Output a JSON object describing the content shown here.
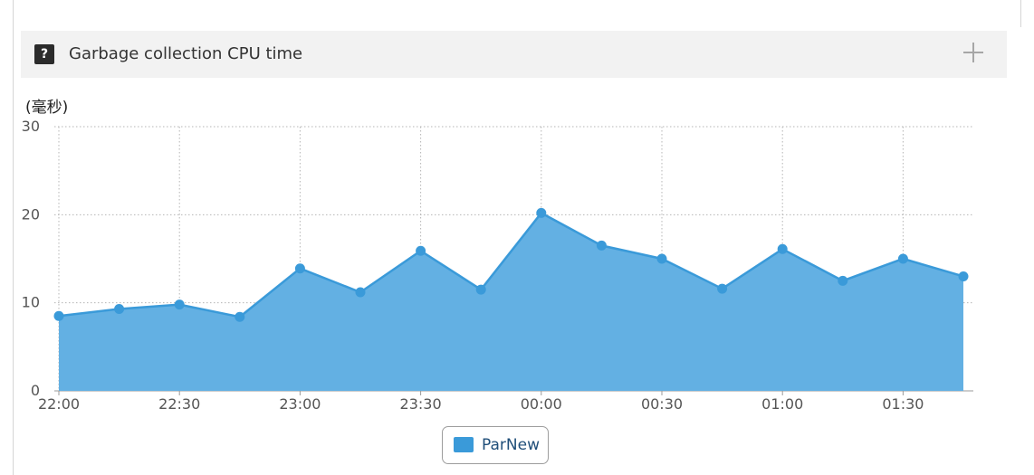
{
  "panel": {
    "title": "Garbage collection CPU time",
    "help_icon": "question-mark-icon",
    "help_glyph": "?",
    "expand_icon": "plus-icon"
  },
  "chart_data": {
    "type": "area",
    "unit_label": "(毫秒)",
    "x": [
      "22:00",
      "22:15",
      "22:30",
      "22:45",
      "23:00",
      "23:15",
      "23:30",
      "23:45",
      "00:00",
      "00:15",
      "00:30",
      "00:45",
      "01:00",
      "01:15",
      "01:30",
      "01:45"
    ],
    "x_tick_labels": [
      "22:00",
      "22:30",
      "23:00",
      "23:30",
      "00:00",
      "00:30",
      "01:00",
      "01:30"
    ],
    "y_ticks": [
      0,
      10,
      20,
      30
    ],
    "ylim": [
      0,
      30
    ],
    "series": [
      {
        "name": "ParNew",
        "color": "#3a9ad9",
        "fill": "#63b0e3",
        "values": [
          8.5,
          9.3,
          9.8,
          8.4,
          13.9,
          11.2,
          15.9,
          11.5,
          20.2,
          16.5,
          15.0,
          11.6,
          16.1,
          12.5,
          15.0,
          13.0
        ]
      }
    ],
    "grid": true,
    "legend": "bottom-center"
  }
}
